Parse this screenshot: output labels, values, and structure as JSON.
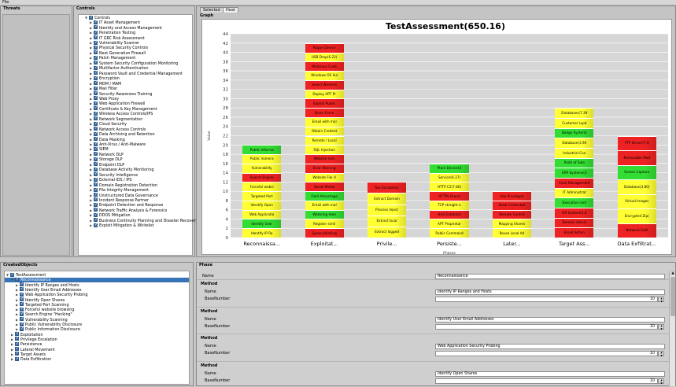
{
  "menu": {
    "file": "File"
  },
  "threats": {
    "title": "Threats"
  },
  "controls": {
    "title": "Controls",
    "root": "Controls",
    "items": [
      "IT Asset Management",
      "Identity and Access Management",
      "Penetration Testing",
      "IT GRC Risk Assessment",
      "Vulnerability Scanner",
      "Physical Security Controls",
      "Next Generation Firewall",
      "Patch Management",
      "System Security Configuration Monitoring",
      "Multifactor Authentication",
      "Password Vault and Credential Management",
      "Encryption",
      "MDM / MAM",
      "Mail Filter",
      "Security Awareness Training",
      "Web Proxy",
      "Web Application Firewall",
      "Certificate & Key Management",
      "Wireless Access Controls/IPS",
      "Network Segmentation",
      "Cloud Security",
      "Network Access Controls",
      "Data Archiving and Retention",
      "Data Masking",
      "Anti-Virus / Anti-Malware",
      "SIEM",
      "Network DLP",
      "Storage DLP",
      "Endpoint DLP",
      "Database Activity Monitoring",
      "Security Intelligence",
      "External IDS / IPS",
      "Domain Registration Detection",
      "File Integrity Management",
      "Unstructured Data Governance",
      "Incident Response Partner",
      "Endpoint Detection and Response",
      "Network Traffic Analysis & Forensics",
      "DDOS Mitigation",
      "Business Continuity Planning and Disaster Recovery",
      "Exploit Mitigation & Whitelist"
    ]
  },
  "tabs": [
    {
      "label": "Selected"
    },
    {
      "label": "Heat"
    }
  ],
  "graph_title": "Graph",
  "chart_data": {
    "type": "bar",
    "stacked": true,
    "title": "TestAssessment(650.16)",
    "ylabel": "Value",
    "xlabel": "Phases",
    "ylim": [
      0,
      44
    ],
    "yticks": [
      0,
      2,
      4,
      6,
      8,
      10,
      12,
      14,
      16,
      18,
      20,
      22,
      24,
      26,
      28,
      30,
      32,
      34,
      36,
      38,
      40,
      42,
      44
    ],
    "categories": [
      "Reconnaissa...",
      "Exploitat...",
      "Privile...",
      "Persiste...",
      "Later...",
      "Target Ass...",
      "Data Exfiltrat..."
    ],
    "stacks": [
      [
        {
          "label": "Identify IP Ra",
          "color": "#ffff33"
        },
        {
          "label": "Identify User",
          "color": "#33dd33"
        },
        {
          "label": "Web Applicatio",
          "color": "#ffff33"
        },
        {
          "label": "Identify Open",
          "color": "#ffff33"
        },
        {
          "label": "Targeted Port",
          "color": "#ffff33"
        },
        {
          "label": "Forceful websi",
          "color": "#ffff33"
        },
        {
          "label": "Search Engine",
          "color": "#ee2222"
        },
        {
          "label": "Vulnerability",
          "color": "#ffff33"
        },
        {
          "label": "Public Vulnera",
          "color": "#ffff33"
        },
        {
          "label": "Public Informa",
          "color": "#33dd33"
        }
      ],
      [
        {
          "label": "Spear-phishing",
          "color": "#ee2222"
        },
        {
          "label": "Register simil",
          "color": "#ffff33"
        },
        {
          "label": "Watering Hole",
          "color": "#33dd33"
        },
        {
          "label": "Email with mal",
          "color": "#ffff33"
        },
        {
          "label": "Field Advantage",
          "color": "#33dd33"
        },
        {
          "label": "Social Media",
          "color": "#ee2222"
        },
        {
          "label": "Website File U",
          "color": "#ffff33"
        },
        {
          "label": "Error Warning",
          "color": "#ee2222"
        },
        {
          "label": "Website Vuln",
          "color": "#ee2222"
        },
        {
          "label": "SQL Injection",
          "color": "#ffff33"
        },
        {
          "label": "Remote / Local",
          "color": "#ffff33"
        },
        {
          "label": "Obtain Credent",
          "color": "#ffff33"
        },
        {
          "label": "Email with mal",
          "color": "#ffff33"
        },
        {
          "label": "Brute Force",
          "color": "#ee2222"
        },
        {
          "label": "Exploit Public",
          "color": "#ee2222"
        },
        {
          "label": "Deploy APT Pr",
          "color": "#ffff33"
        },
        {
          "label": "Select Wireless",
          "color": "#ee2222"
        },
        {
          "label": "Windows OS Vul",
          "color": "#ffff33"
        },
        {
          "label": "Malicious Code",
          "color": "#ee2222"
        },
        {
          "label": "USB Drop(6.22)",
          "color": "#ffff33"
        },
        {
          "label": "Rogue Device",
          "color": "#ee2222"
        }
      ],
      [
        {
          "label": "Extract logged",
          "color": "#ffff33"
        },
        {
          "label": "Extract local",
          "color": "#ffff33"
        },
        {
          "label": "Process Inject",
          "color": "#ffff33"
        },
        {
          "label": "Extract Domain",
          "color": "#ffff33"
        },
        {
          "label": "Sec Escalation",
          "color": "#ee2222"
        }
      ],
      [
        {
          "label": "Public Command",
          "color": "#ffff33"
        },
        {
          "label": "APT Proprietar",
          "color": "#ffff33"
        },
        {
          "label": "Host Establish",
          "color": "#ee2222"
        },
        {
          "label": "TCP straight o",
          "color": "#ffff33"
        },
        {
          "label": "HTTPS Brand",
          "color": "#ee2222"
        },
        {
          "label": "HTTP C2(7.80)",
          "color": "#ffff33"
        },
        {
          "label": "Service(6.37)",
          "color": "#ffff33"
        },
        {
          "label": "Plant Device(3",
          "color": "#33dd33"
        }
      ],
      [
        {
          "label": "Reuse Local Ad",
          "color": "#ffff33"
        },
        {
          "label": "Mapping Shares",
          "color": "#ffff33"
        },
        {
          "label": "Remote Control",
          "color": "#ee2222"
        },
        {
          "label": "Steal Credential",
          "color": "#ee2222"
        },
        {
          "label": "Use Privileged",
          "color": "#ee2222"
        }
      ],
      [
        {
          "label": "Email Admin",
          "color": "#ee2222"
        },
        {
          "label": "Domain Admin",
          "color": "#ee2222"
        },
        {
          "label": "HR System(3.6",
          "color": "#ee2222"
        },
        {
          "label": "Executive com",
          "color": "#33dd33"
        },
        {
          "label": "IT Administrat",
          "color": "#ffff33"
        },
        {
          "label": "Cash Management",
          "color": "#ee2222"
        },
        {
          "label": "ERP Systems(3",
          "color": "#33dd33"
        },
        {
          "label": "Point of Sale",
          "color": "#33dd33"
        },
        {
          "label": "Industrial Con",
          "color": "#ffff33"
        },
        {
          "label": "Database(3.94",
          "color": "#ffff33"
        },
        {
          "label": "Badge System(",
          "color": "#33dd33"
        },
        {
          "label": "Customer (upd",
          "color": "#ffff33"
        },
        {
          "label": "Databases(7.39",
          "color": "#ffff33"
        }
      ],
      [
        {
          "label": "Network Exfil",
          "color": "#ee2222"
        },
        {
          "label": "Encrypted Zip(",
          "color": "#ffff33"
        },
        {
          "label": "Virtual Images",
          "color": "#ffff33"
        },
        {
          "label": "Database(3.80)",
          "color": "#ffff33"
        },
        {
          "label": "Screen Capture",
          "color": "#33dd33"
        },
        {
          "label": "Removable Med",
          "color": "#ee2222"
        },
        {
          "label": "FTP Server(7.9",
          "color": "#ee2222"
        }
      ]
    ],
    "totals": [
      20,
      42,
      12,
      16,
      10,
      28,
      22
    ]
  },
  "created_objects": {
    "title": "CreatedObjects",
    "root": "TestAssessment",
    "selected": "Reconnaissance",
    "children": [
      "Identify IP Ranges and Hosts",
      "Identify User Email Addresses",
      "Web Application Security Probing",
      "Identify Open Shares",
      "Targeted Port Scanning",
      "Forceful website browsing",
      "Search Engine \"Hacking\"",
      "Vulnerability Scanning",
      "Public Vulnerability Disclosure",
      "Public Information Disclosure"
    ],
    "others": [
      "Exploitation",
      "Privilege Escalation",
      "Persistence",
      "Lateral Movement",
      "Target Assets",
      "Data Exfiltration"
    ]
  },
  "phase": {
    "title": "Phase",
    "name_label": "Name",
    "name_value": "Reconnaissance",
    "methods": [
      {
        "header": "Method",
        "name_label": "Name",
        "name_value": "Identify IP Ranges and Hosts",
        "base_label": "BaseNumber",
        "base_value": "10"
      },
      {
        "header": "Method",
        "name_label": "Name",
        "name_value": "Identify User Email Addresses",
        "base_label": "BaseNumber",
        "base_value": "10"
      },
      {
        "header": "Method",
        "name_label": "Name",
        "name_value": "Web Application Security Probing",
        "base_label": "BaseNumber",
        "base_value": "10"
      },
      {
        "header": "Method",
        "name_label": "Name",
        "name_value": "Identify Open Shares",
        "base_label": "BaseNumber",
        "base_value": "10"
      }
    ]
  }
}
